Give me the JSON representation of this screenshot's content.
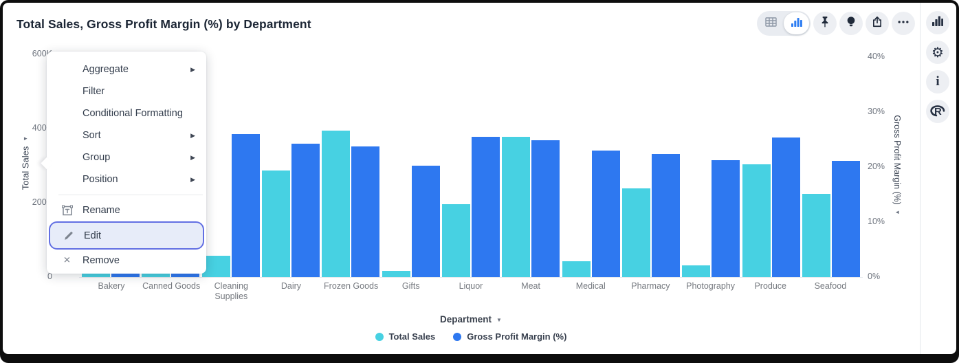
{
  "header": {
    "title": "Total Sales, Gross Profit Margin (%) by Department"
  },
  "toolbar": {
    "view_toggle": {
      "options": [
        "table-view",
        "chart-view"
      ],
      "active": "chart-view"
    },
    "buttons": [
      {
        "name": "pin-button",
        "icon": "pin-icon"
      },
      {
        "name": "explore-button",
        "icon": "lightbulb-icon"
      },
      {
        "name": "export-button",
        "icon": "share-icon"
      },
      {
        "name": "more-button",
        "icon": "ellipsis-icon"
      }
    ]
  },
  "right_sidebar": {
    "buttons": [
      {
        "name": "chart-panel-button",
        "icon": "bar-chart-icon"
      },
      {
        "name": "settings-button",
        "icon": "gear-icon"
      },
      {
        "name": "info-button",
        "icon": "info-icon"
      },
      {
        "name": "r-analytics-button",
        "icon": "r-logo-icon"
      }
    ]
  },
  "context_menu": {
    "sections": [
      {
        "items": [
          {
            "label": "Aggregate",
            "submenu": true
          },
          {
            "label": "Filter",
            "submenu": false
          },
          {
            "label": "Conditional Formatting",
            "submenu": false
          },
          {
            "label": "Sort",
            "submenu": true
          },
          {
            "label": "Group",
            "submenu": true
          },
          {
            "label": "Position",
            "submenu": true
          }
        ]
      },
      {
        "items": [
          {
            "label": "Rename",
            "icon": "rename-icon"
          },
          {
            "label": "Edit",
            "icon": "pencil-icon",
            "highlighted": true
          },
          {
            "label": "Remove",
            "icon": "x-icon"
          }
        ]
      }
    ]
  },
  "chart_data": {
    "type": "bar",
    "title": "Total Sales, Gross Profit Margin (%) by Department",
    "categories": [
      "Bakery",
      "Canned Goods",
      "Cleaning Supplies",
      "Dairy",
      "Frozen Goods",
      "Gifts",
      "Liquor",
      "Meat",
      "Medical",
      "Pharmacy",
      "Photography",
      "Produce",
      "Seafood"
    ],
    "series": [
      {
        "name": "Total Sales",
        "axis": "left",
        "color": "#47d1e2",
        "values": [
          160000,
          135000,
          58000,
          287000,
          394000,
          17000,
          196000,
          378000,
          43000,
          239000,
          32000,
          303000,
          224000
        ]
      },
      {
        "name": "Gross Profit Margin (%)",
        "axis": "right",
        "color": "#2e78f0",
        "values": [
          21,
          23,
          26,
          24.3,
          23.7,
          20.3,
          25.5,
          24.9,
          23,
          22.4,
          21.3,
          25.4,
          21.1
        ]
      }
    ],
    "x_axis": {
      "label": "Department"
    },
    "left_axis": {
      "label": "Total Sales",
      "max": 600000,
      "ticks": [
        {
          "label": "600K",
          "value": 600000
        },
        {
          "label": "400K",
          "value": 400000
        },
        {
          "label": "200K",
          "value": 200000
        },
        {
          "label": "0",
          "value": 0
        }
      ]
    },
    "right_axis": {
      "label": "Gross Profit Margin (%)",
      "max": 40,
      "ticks": [
        {
          "label": "40%",
          "value": 40
        },
        {
          "label": "30%",
          "value": 30
        },
        {
          "label": "20%",
          "value": 20
        },
        {
          "label": "10%",
          "value": 10
        },
        {
          "label": "0%",
          "value": 0
        }
      ]
    },
    "legend": {
      "position": "bottom",
      "entries": [
        "Total Sales",
        "Gross Profit Margin (%)"
      ]
    },
    "grid": false
  },
  "colors": {
    "total_sales": "#47d1e2",
    "gross_profit_margin": "#2e78f0",
    "highlight_ring": "#626fe3",
    "highlight_bg": "#e7ecf9",
    "accent_blue": "#2e7df2"
  }
}
